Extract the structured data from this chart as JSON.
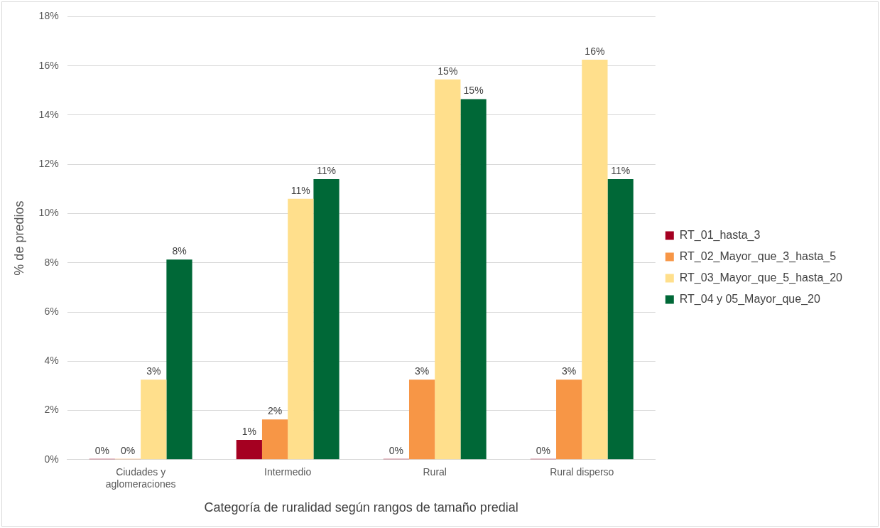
{
  "chart_data": {
    "type": "bar",
    "xlabel": "Categoría de ruralidad según rangos de tamaño predial",
    "ylabel": "% de predios",
    "categories": [
      "Ciudades y aglomeraciones",
      "Intermedio",
      "Rural",
      "Rural disperso"
    ],
    "series": [
      {
        "name": "RT_01_hasta_3",
        "color": "#a50021",
        "values": [
          0,
          0.8,
          0,
          0
        ],
        "value_labels": [
          "0%",
          "1%",
          "0%",
          "0%"
        ]
      },
      {
        "name": "RT_02_Mayor_que_3_hasta_5",
        "color": "#f79646",
        "values": [
          0,
          1.63,
          3.25,
          3.25
        ],
        "value_labels": [
          "0%",
          "2%",
          "3%",
          "3%"
        ]
      },
      {
        "name": "RT_03_Mayor_que_5_hasta_20",
        "color": "#ffdf8c",
        "values": [
          3.25,
          10.6,
          15.45,
          16.25
        ],
        "value_labels": [
          "3%",
          "11%",
          "15%",
          "16%"
        ]
      },
      {
        "name": "RT_04 y 05_Mayor_que_20",
        "color": "#006837",
        "values": [
          8.13,
          11.4,
          14.65,
          11.4
        ],
        "value_labels": [
          "8%",
          "11%",
          "15%",
          "11%"
        ]
      }
    ],
    "ylim": [
      0,
      18
    ],
    "yticks": [
      {
        "value": 0,
        "label": "0%"
      },
      {
        "value": 2,
        "label": "2%"
      },
      {
        "value": 4,
        "label": "4%"
      },
      {
        "value": 6,
        "label": "6%"
      },
      {
        "value": 8,
        "label": "8%"
      },
      {
        "value": 10,
        "label": "10%"
      },
      {
        "value": 12,
        "label": "12%"
      },
      {
        "value": 14,
        "label": "14%"
      },
      {
        "value": 16,
        "label": "16%"
      },
      {
        "value": 18,
        "label": "18%"
      }
    ],
    "grid": "y",
    "legend": "right"
  }
}
